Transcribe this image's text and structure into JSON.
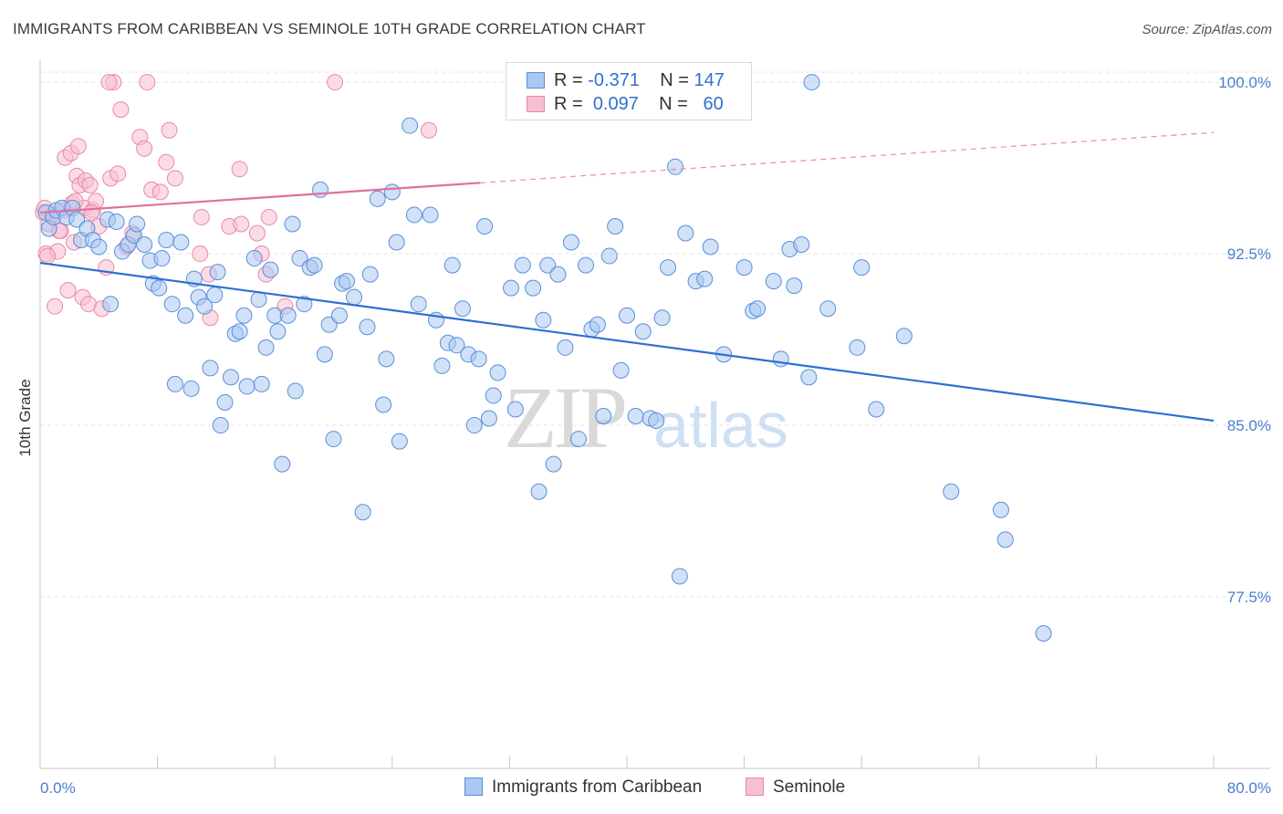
{
  "title": "IMMIGRANTS FROM CARIBBEAN VS SEMINOLE 10TH GRADE CORRELATION CHART",
  "source": "Source: ZipAtlas.com",
  "watermark": {
    "zip": "ZIP",
    "atlas": "atlas"
  },
  "legend": {
    "rows": [
      {
        "r_label": "R =",
        "r_value": "-0.371",
        "n_label": "N =",
        "n_value": "147"
      },
      {
        "r_label": "R =",
        "r_value": "0.097",
        "n_label": "N =",
        "n_value": "60"
      }
    ]
  },
  "colors": {
    "blue_fill": "#a9c8f2",
    "blue_stroke": "#5b8fd8",
    "blue_line": "#2e6fd4",
    "pink_fill": "#f7bfd2",
    "pink_stroke": "#e889a8",
    "pink_line": "#e0709a",
    "tick_label": "#4a7fd0",
    "grid": "#e3e3e3"
  },
  "chart_data": {
    "type": "scatter",
    "title": "IMMIGRANTS FROM CARIBBEAN VS SEMINOLE 10TH GRADE CORRELATION CHART",
    "xlabel": "",
    "ylabel": "10th Grade",
    "xlim": [
      0,
      80
    ],
    "ylim": [
      70,
      101
    ],
    "x_tick_labels": [
      "0.0%",
      "80.0%"
    ],
    "y_ticks": [
      77.5,
      85.0,
      92.5,
      100.0
    ],
    "y_tick_labels": [
      "77.5%",
      "85.0%",
      "92.5%",
      "100.0%"
    ],
    "grid": "horizontal dashed",
    "legend_position": "bottom",
    "series": [
      {
        "name": "Immigrants from Caribbean",
        "r": -0.371,
        "n": 147,
        "trend": {
          "x": [
            0,
            80
          ],
          "y": [
            92.1,
            85.2
          ],
          "style": "solid"
        },
        "points": [
          [
            0.4,
            94.3
          ],
          [
            0.6,
            93.6
          ],
          [
            0.9,
            94.1
          ],
          [
            1.1,
            94.4
          ],
          [
            1.5,
            94.5
          ],
          [
            1.8,
            94.1
          ],
          [
            2.2,
            94.5
          ],
          [
            2.5,
            94.0
          ],
          [
            2.8,
            93.1
          ],
          [
            3.2,
            93.6
          ],
          [
            3.6,
            93.1
          ],
          [
            4.0,
            92.8
          ],
          [
            4.6,
            94.0
          ],
          [
            4.8,
            90.3
          ],
          [
            5.2,
            93.9
          ],
          [
            5.6,
            92.6
          ],
          [
            6.0,
            92.9
          ],
          [
            6.4,
            93.3
          ],
          [
            6.6,
            93.8
          ],
          [
            7.1,
            92.9
          ],
          [
            7.5,
            92.2
          ],
          [
            7.7,
            91.2
          ],
          [
            8.1,
            91.0
          ],
          [
            8.3,
            92.3
          ],
          [
            8.6,
            93.1
          ],
          [
            9.0,
            90.3
          ],
          [
            9.2,
            86.8
          ],
          [
            9.6,
            93.0
          ],
          [
            9.9,
            89.8
          ],
          [
            10.3,
            86.6
          ],
          [
            10.5,
            91.4
          ],
          [
            10.8,
            90.6
          ],
          [
            11.2,
            90.2
          ],
          [
            11.6,
            87.5
          ],
          [
            11.9,
            90.7
          ],
          [
            12.1,
            91.7
          ],
          [
            12.3,
            85.0
          ],
          [
            12.6,
            86.0
          ],
          [
            13.0,
            87.1
          ],
          [
            13.3,
            89.0
          ],
          [
            13.6,
            89.1
          ],
          [
            13.9,
            89.8
          ],
          [
            14.1,
            86.7
          ],
          [
            14.6,
            92.3
          ],
          [
            14.9,
            90.5
          ],
          [
            15.1,
            86.8
          ],
          [
            15.4,
            88.4
          ],
          [
            15.7,
            91.8
          ],
          [
            16.0,
            89.8
          ],
          [
            16.2,
            89.1
          ],
          [
            16.5,
            83.3
          ],
          [
            16.9,
            89.8
          ],
          [
            17.2,
            93.8
          ],
          [
            17.4,
            86.5
          ],
          [
            17.7,
            92.3
          ],
          [
            18.0,
            90.3
          ],
          [
            18.4,
            91.9
          ],
          [
            18.7,
            92.0
          ],
          [
            19.1,
            95.3
          ],
          [
            19.4,
            88.1
          ],
          [
            19.7,
            89.4
          ],
          [
            20.0,
            84.4
          ],
          [
            20.4,
            89.8
          ],
          [
            20.6,
            91.2
          ],
          [
            20.9,
            91.3
          ],
          [
            21.4,
            90.6
          ],
          [
            22.0,
            81.2
          ],
          [
            22.3,
            89.3
          ],
          [
            22.5,
            91.6
          ],
          [
            23.0,
            94.9
          ],
          [
            23.4,
            85.9
          ],
          [
            23.6,
            87.9
          ],
          [
            24.0,
            95.2
          ],
          [
            24.3,
            93.0
          ],
          [
            24.5,
            84.3
          ],
          [
            25.2,
            98.1
          ],
          [
            25.5,
            94.2
          ],
          [
            25.8,
            90.3
          ],
          [
            26.6,
            94.2
          ],
          [
            27.0,
            89.6
          ],
          [
            27.4,
            87.6
          ],
          [
            27.8,
            88.6
          ],
          [
            28.1,
            92.0
          ],
          [
            28.4,
            88.5
          ],
          [
            28.8,
            90.1
          ],
          [
            29.2,
            88.1
          ],
          [
            29.6,
            85.0
          ],
          [
            29.9,
            87.9
          ],
          [
            30.3,
            93.7
          ],
          [
            30.6,
            85.3
          ],
          [
            30.9,
            86.3
          ],
          [
            31.2,
            87.3
          ],
          [
            32.1,
            91.0
          ],
          [
            32.4,
            85.7
          ],
          [
            32.9,
            92.0
          ],
          [
            33.6,
            91.0
          ],
          [
            34.0,
            82.1
          ],
          [
            34.3,
            89.6
          ],
          [
            34.6,
            92.0
          ],
          [
            35.0,
            83.3
          ],
          [
            35.3,
            91.6
          ],
          [
            35.8,
            88.4
          ],
          [
            36.2,
            93.0
          ],
          [
            36.7,
            84.4
          ],
          [
            37.2,
            92.0
          ],
          [
            37.6,
            89.2
          ],
          [
            38.0,
            89.4
          ],
          [
            38.4,
            85.4
          ],
          [
            38.8,
            92.4
          ],
          [
            39.2,
            93.7
          ],
          [
            39.6,
            87.4
          ],
          [
            40.0,
            89.8
          ],
          [
            40.6,
            85.4
          ],
          [
            41.1,
            89.1
          ],
          [
            41.6,
            85.3
          ],
          [
            42.0,
            85.2
          ],
          [
            42.4,
            89.7
          ],
          [
            42.8,
            91.9
          ],
          [
            43.3,
            96.3
          ],
          [
            43.6,
            78.4
          ],
          [
            44.0,
            93.4
          ],
          [
            44.7,
            91.3
          ],
          [
            45.3,
            91.4
          ],
          [
            45.7,
            92.8
          ],
          [
            46.6,
            88.1
          ],
          [
            48.0,
            91.9
          ],
          [
            48.6,
            90.0
          ],
          [
            48.9,
            90.1
          ],
          [
            50.0,
            91.3
          ],
          [
            50.5,
            87.9
          ],
          [
            51.1,
            92.7
          ],
          [
            51.4,
            91.1
          ],
          [
            51.9,
            92.9
          ],
          [
            52.4,
            87.1
          ],
          [
            52.6,
            100.0
          ],
          [
            53.7,
            90.1
          ],
          [
            55.7,
            88.4
          ],
          [
            56.0,
            91.9
          ],
          [
            57.0,
            85.7
          ],
          [
            58.9,
            88.9
          ],
          [
            62.1,
            82.1
          ],
          [
            65.5,
            81.3
          ],
          [
            65.8,
            80.0
          ],
          [
            68.4,
            75.9
          ]
        ]
      },
      {
        "name": "Seminole",
        "r": 0.097,
        "n": 60,
        "trend": {
          "x": [
            0,
            30
          ],
          "y": [
            94.3,
            95.6
          ],
          "style": "solid",
          "extended_to": [
            80,
            97.8
          ],
          "extended_style": "dashed"
        },
        "points": [
          [
            0.2,
            94.3
          ],
          [
            0.4,
            92.5
          ],
          [
            0.6,
            93.8
          ],
          [
            0.8,
            94.2
          ],
          [
            1.0,
            90.2
          ],
          [
            1.2,
            92.6
          ],
          [
            1.4,
            93.5
          ],
          [
            1.6,
            94.4
          ],
          [
            1.7,
            96.7
          ],
          [
            1.9,
            90.9
          ],
          [
            2.1,
            96.9
          ],
          [
            2.2,
            94.7
          ],
          [
            2.3,
            93.0
          ],
          [
            2.5,
            95.9
          ],
          [
            2.6,
            97.2
          ],
          [
            2.7,
            95.5
          ],
          [
            2.9,
            90.6
          ],
          [
            3.0,
            94.5
          ],
          [
            3.1,
            95.7
          ],
          [
            3.3,
            90.3
          ],
          [
            3.4,
            95.5
          ],
          [
            3.6,
            94.4
          ],
          [
            3.8,
            94.8
          ],
          [
            4.0,
            93.7
          ],
          [
            4.2,
            90.1
          ],
          [
            4.5,
            91.9
          ],
          [
            4.8,
            95.8
          ],
          [
            5.0,
            100.0
          ],
          [
            5.3,
            96.0
          ],
          [
            5.5,
            98.8
          ],
          [
            5.9,
            92.8
          ],
          [
            6.3,
            93.4
          ],
          [
            6.8,
            97.6
          ],
          [
            7.1,
            97.1
          ],
          [
            7.3,
            100.0
          ],
          [
            7.6,
            95.3
          ],
          [
            8.2,
            95.2
          ],
          [
            8.6,
            96.5
          ],
          [
            8.8,
            97.9
          ],
          [
            9.2,
            95.8
          ],
          [
            10.9,
            92.5
          ],
          [
            11.0,
            94.1
          ],
          [
            11.5,
            91.6
          ],
          [
            11.6,
            89.7
          ],
          [
            12.9,
            93.7
          ],
          [
            13.6,
            96.2
          ],
          [
            13.7,
            93.8
          ],
          [
            14.8,
            93.4
          ],
          [
            15.1,
            92.5
          ],
          [
            15.4,
            91.6
          ],
          [
            15.6,
            94.1
          ],
          [
            16.7,
            90.2
          ],
          [
            20.1,
            100.0
          ],
          [
            26.5,
            97.9
          ],
          [
            0.3,
            94.5
          ],
          [
            1.3,
            93.5
          ],
          [
            2.4,
            94.8
          ],
          [
            4.7,
            100.0
          ],
          [
            0.5,
            92.4
          ],
          [
            3.5,
            94.3
          ]
        ]
      }
    ]
  },
  "bottom_legend": {
    "series1": "Immigrants from Caribbean",
    "series2": "Seminole"
  }
}
